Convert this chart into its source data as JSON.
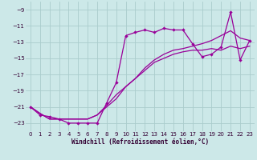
{
  "background_color": "#cce8e8",
  "grid_color": "#aacccc",
  "line_color": "#990099",
  "xlabel": "Windchill (Refroidissement éolien,°C)",
  "xlim": [
    -0.5,
    23.5
  ],
  "ylim": [
    -24.0,
    -8.0
  ],
  "xticks": [
    0,
    1,
    2,
    3,
    4,
    5,
    6,
    7,
    8,
    9,
    10,
    11,
    12,
    13,
    14,
    15,
    16,
    17,
    18,
    19,
    20,
    21,
    22,
    23
  ],
  "yticks": [
    -23,
    -21,
    -19,
    -17,
    -15,
    -13,
    -11,
    -9
  ],
  "line1_x": [
    0,
    1,
    2,
    3,
    4,
    5,
    6,
    7,
    8,
    9,
    10,
    11,
    12,
    13,
    14,
    15,
    16,
    17,
    18,
    19,
    20,
    21,
    22,
    23
  ],
  "line1_y": [
    -21,
    -22,
    -22.2,
    -22.5,
    -23,
    -23,
    -23,
    -23,
    -20.5,
    -18,
    -12.2,
    -11.8,
    -11.5,
    -11.8,
    -11.3,
    -11.5,
    -11.5,
    -13.2,
    -14.8,
    -14.5,
    -13.6,
    -9.3,
    -15.2,
    -12.8
  ],
  "line2_x": [
    0,
    1,
    2,
    3,
    4,
    5,
    6,
    7,
    8,
    9,
    10,
    11,
    12,
    13,
    14,
    15,
    16,
    17,
    18,
    19,
    20,
    21,
    22,
    23
  ],
  "line2_y": [
    -21,
    -21.8,
    -22.5,
    -22.5,
    -22.5,
    -22.5,
    -22.5,
    -22.0,
    -21.0,
    -20.0,
    -18.5,
    -17.5,
    -16.2,
    -15.2,
    -14.5,
    -14.0,
    -13.8,
    -13.5,
    -13.2,
    -12.8,
    -12.2,
    -11.6,
    -12.5,
    -12.8
  ],
  "line3_x": [
    0,
    1,
    2,
    3,
    4,
    5,
    6,
    7,
    8,
    9,
    10,
    11,
    12,
    13,
    14,
    15,
    16,
    17,
    18,
    19,
    20,
    21,
    22,
    23
  ],
  "line3_y": [
    -21,
    -21.8,
    -22.5,
    -22.5,
    -22.5,
    -22.5,
    -22.5,
    -22.0,
    -20.8,
    -19.5,
    -18.5,
    -17.5,
    -16.5,
    -15.5,
    -15.0,
    -14.5,
    -14.2,
    -14.0,
    -14.0,
    -13.8,
    -14.0,
    -13.5,
    -13.8,
    -13.5
  ]
}
